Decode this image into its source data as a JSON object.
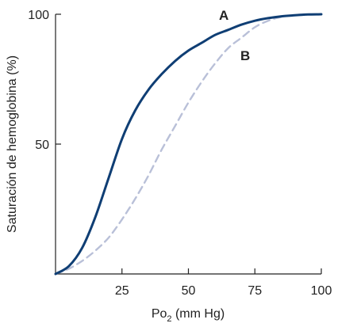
{
  "chart_data": {
    "type": "line",
    "title": "",
    "xlabel_main": "Po",
    "xlabel_sub": "2",
    "xlabel_rest": " (mm Hg)",
    "ylabel": "Saturación de hemoglobina (%)",
    "xlim": [
      0,
      100
    ],
    "ylim": [
      0,
      100
    ],
    "xticks": [
      25,
      50,
      75,
      100
    ],
    "yticks": [
      50,
      100
    ],
    "grid": false,
    "series": [
      {
        "name": "A",
        "color": "#0f3e74",
        "dash": "solid",
        "x": [
          0,
          5,
          10,
          15,
          20,
          25,
          30,
          35,
          40,
          45,
          50,
          55,
          60,
          65,
          70,
          75,
          80,
          85,
          90,
          95,
          100
        ],
        "y": [
          0,
          3,
          10,
          22,
          37,
          52,
          63,
          71,
          77,
          82,
          86,
          89,
          92,
          94,
          96,
          97.5,
          98.5,
          99.2,
          99.6,
          99.9,
          100
        ]
      },
      {
        "name": "B",
        "color": "#b9c0d8",
        "dash": "dashed",
        "x": [
          0,
          5,
          10,
          15,
          20,
          25,
          30,
          35,
          40,
          45,
          50,
          55,
          60,
          65,
          70,
          75,
          80,
          85,
          90,
          95,
          100
        ],
        "y": [
          0,
          2,
          5,
          9,
          14,
          21,
          29,
          38,
          48,
          57,
          66,
          74,
          81,
          87,
          91,
          95,
          97.5,
          99,
          99.7,
          100,
          100
        ]
      }
    ]
  }
}
